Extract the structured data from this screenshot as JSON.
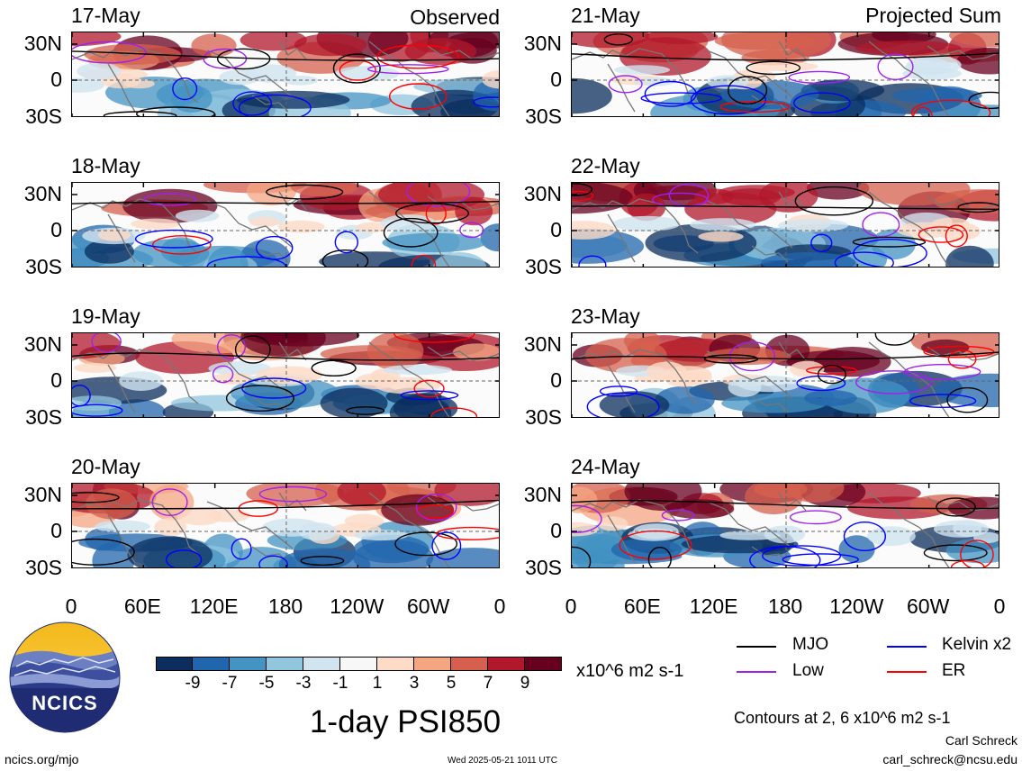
{
  "titles": {
    "observed": "Observed",
    "projected": "Projected Sum",
    "main": "1-day PSI850"
  },
  "dates": {
    "left": [
      "17-May",
      "18-May",
      "19-May",
      "20-May"
    ],
    "right": [
      "21-May",
      "22-May",
      "23-May",
      "24-May"
    ]
  },
  "lat_labels": [
    "30N",
    "0",
    "30S"
  ],
  "lon_labels": [
    "0",
    "60E",
    "120E",
    "180",
    "120W",
    "60W",
    "0"
  ],
  "colorbar": {
    "units": "x10^6 m2 s-1",
    "colors": [
      "#0b2e5e",
      "#2166ac",
      "#4393c3",
      "#92c5de",
      "#d1e5f0",
      "#f7f7f7",
      "#fddbc7",
      "#f4a582",
      "#d6604d",
      "#b2182b",
      "#67001f"
    ],
    "labels": [
      "-9",
      "-7",
      "-5",
      "-3",
      "-1",
      "1",
      "3",
      "5",
      "7",
      "9"
    ]
  },
  "legend": {
    "items": [
      {
        "label": "MJO",
        "color": "#000000"
      },
      {
        "label": "Kelvin x2",
        "color": "#0000ff"
      },
      {
        "label": "Low",
        "color": "#a020f0"
      },
      {
        "label": "ER",
        "color": "#ff0000"
      }
    ],
    "contours_note": "Contours at 2, 6 x10^6 m2 s-1"
  },
  "footer": {
    "logo_text": "NCICS",
    "site": "ncics.org/mjo",
    "timestamp": "Wed 2025-05-21 1011 UTC",
    "author": "Carl Schreck",
    "email": "carl_schreck@ncsu.edu"
  }
}
